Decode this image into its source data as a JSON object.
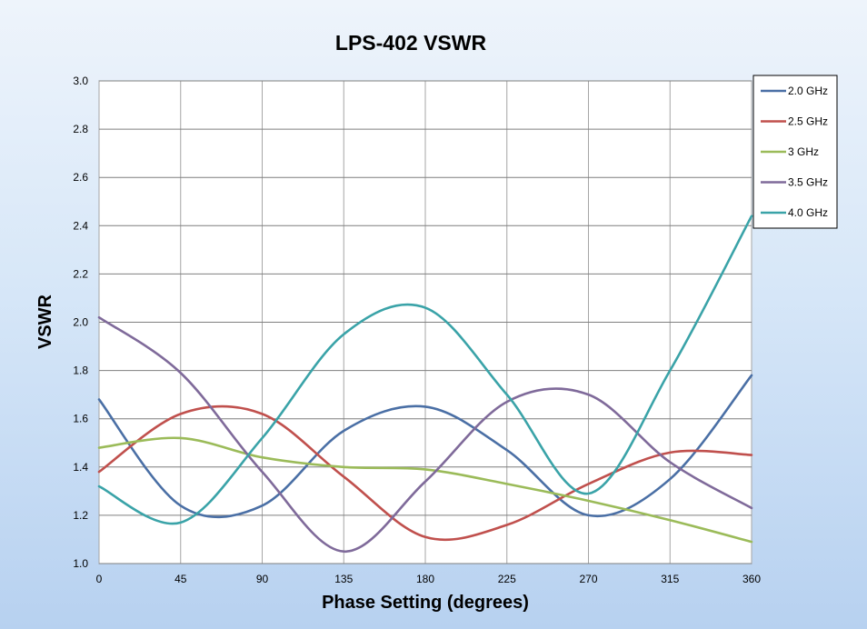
{
  "chart_data": {
    "type": "line",
    "title": "LPS-402 VSWR",
    "xlabel": "Phase Setting (degrees)",
    "ylabel": "VSWR",
    "xlim": [
      0,
      360
    ],
    "ylim": [
      1.0,
      3.0
    ],
    "x_ticks": [
      "0",
      "45",
      "90",
      "135",
      "180",
      "225",
      "270",
      "315",
      "360"
    ],
    "y_ticks": [
      "1.0",
      "1.2",
      "1.4",
      "1.6",
      "1.8",
      "2.0",
      "2.2",
      "2.4",
      "2.6",
      "2.8",
      "3.0"
    ],
    "grid": true,
    "legend_position": "top-right",
    "x": [
      0,
      45,
      90,
      135,
      180,
      225,
      270,
      315,
      360
    ],
    "series": [
      {
        "name": "2.0 GHz",
        "color": "#4a6fa5",
        "values": [
          1.68,
          1.24,
          1.24,
          1.55,
          1.65,
          1.47,
          1.2,
          1.35,
          1.78
        ]
      },
      {
        "name": "2.5 GHz",
        "color": "#c0504d",
        "values": [
          1.38,
          1.62,
          1.62,
          1.36,
          1.11,
          1.16,
          1.33,
          1.46,
          1.45
        ]
      },
      {
        "name": "3 GHz",
        "color": "#9bbb59",
        "values": [
          1.48,
          1.52,
          1.44,
          1.4,
          1.39,
          1.33,
          1.26,
          1.18,
          1.09
        ]
      },
      {
        "name": "3.5 GHz",
        "color": "#7f6a9a",
        "values": [
          2.02,
          1.79,
          1.38,
          1.05,
          1.34,
          1.67,
          1.7,
          1.42,
          1.23
        ]
      },
      {
        "name": "4.0 GHz",
        "color": "#3aa3a8",
        "values": [
          1.32,
          1.17,
          1.52,
          1.95,
          2.06,
          1.7,
          1.29,
          1.8,
          2.44
        ]
      }
    ]
  }
}
